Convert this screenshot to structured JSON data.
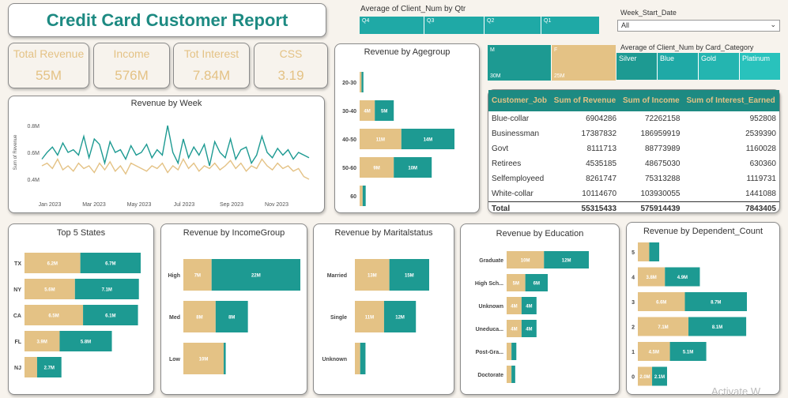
{
  "title": "Credit Card Customer Report",
  "kpis": [
    {
      "label": "Total Revenue",
      "value": "55M"
    },
    {
      "label": "Income",
      "value": "576M"
    },
    {
      "label": "Tot Interest",
      "value": "7.84M"
    },
    {
      "label": "CSS",
      "value": "3.19"
    }
  ],
  "qtr_chart": {
    "title": "Average of Client_Num by Qtr",
    "segments": [
      "Q4",
      "Q3",
      "Q2",
      "Q1"
    ]
  },
  "slicer": {
    "label": "Week_Start_Date",
    "value": "All"
  },
  "gender_tree": {
    "items": [
      {
        "label": "M",
        "value": "30M"
      },
      {
        "label": "F",
        "value": "25M"
      }
    ]
  },
  "card_category": {
    "title": "Average of Client_Num by Card_Category",
    "items": [
      "Silver",
      "Blue",
      "Gold",
      "Platinum"
    ]
  },
  "table": {
    "headers": [
      "Customer_Job",
      "Sum of Revenue",
      "Sum of Income",
      "Sum of Interest_Earned"
    ],
    "rows": [
      [
        "Blue-collar",
        "6904286",
        "72262158",
        "952808"
      ],
      [
        "Businessman",
        "17387832",
        "186959919",
        "2539390"
      ],
      [
        "Govt",
        "8111713",
        "88773989",
        "1160028"
      ],
      [
        "Retirees",
        "4535185",
        "48675030",
        "630360"
      ],
      [
        "Selfemployeed",
        "8261747",
        "75313288",
        "1119731"
      ],
      [
        "White-collar",
        "10114670",
        "103930055",
        "1441088"
      ]
    ],
    "total": [
      "Total",
      "55315433",
      "575914439",
      "7843405"
    ]
  },
  "colors": {
    "teal": "#1d9a92",
    "gold": "#e4c285",
    "qtr": "#1fa9a6"
  },
  "chart_data": [
    {
      "type": "line",
      "title": "Revenue by Week",
      "ylabel": "Sum of Revenue",
      "yticks": [
        "0.8M",
        "0.6M",
        "0.4M"
      ],
      "ylim": [
        0.3,
        0.9
      ],
      "xticks": [
        "Jan 2023",
        "Mar 2023",
        "May 2023",
        "Jul 2023",
        "Sep 2023",
        "Nov 2023"
      ],
      "series": [
        {
          "name": "",
          "values": [
            0.55,
            0.6,
            0.64,
            0.58,
            0.67,
            0.6,
            0.62,
            0.58,
            0.72,
            0.56,
            0.7,
            0.66,
            0.52,
            0.68,
            0.6,
            0.62,
            0.55,
            0.65,
            0.58,
            0.6,
            0.66,
            0.56,
            0.62,
            0.58,
            0.8,
            0.6,
            0.52,
            0.7,
            0.56,
            0.64,
            0.58,
            0.66,
            0.5,
            0.68,
            0.6,
            0.56,
            0.7,
            0.55,
            0.62,
            0.64,
            0.52,
            0.58,
            0.72,
            0.6,
            0.56,
            0.63,
            0.58,
            0.62,
            0.55,
            0.6,
            0.58,
            0.56
          ]
        },
        {
          "name": "",
          "values": [
            0.5,
            0.52,
            0.48,
            0.55,
            0.47,
            0.5,
            0.46,
            0.52,
            0.48,
            0.5,
            0.45,
            0.52,
            0.47,
            0.53,
            0.46,
            0.5,
            0.44,
            0.52,
            0.5,
            0.48,
            0.46,
            0.5,
            0.48,
            0.52,
            0.45,
            0.5,
            0.47,
            0.55,
            0.48,
            0.52,
            0.46,
            0.5,
            0.48,
            0.52,
            0.47,
            0.5,
            0.54,
            0.48,
            0.52,
            0.46,
            0.5,
            0.48,
            0.55,
            0.5,
            0.47,
            0.52,
            0.48,
            0.5,
            0.46,
            0.48,
            0.42,
            0.4
          ]
        }
      ]
    },
    {
      "type": "bar",
      "title": "Revenue by Agegroup",
      "categories": [
        "20-30",
        "30-40",
        "40-50",
        "50-60",
        "60"
      ],
      "series": [
        {
          "name": "",
          "values": [
            0.5,
            4,
            11,
            9,
            0.8
          ],
          "labels": [
            "",
            "4M",
            "11M",
            "9M",
            ""
          ]
        },
        {
          "name": "",
          "values": [
            0.5,
            5,
            14,
            10,
            0.8
          ],
          "labels": [
            "",
            "5M",
            "14M",
            "10M",
            ""
          ]
        }
      ]
    },
    {
      "type": "bar",
      "title": "Top 5 States",
      "categories": [
        "TX",
        "NY",
        "CA",
        "FL",
        "NJ"
      ],
      "series": [
        {
          "name": "",
          "values": [
            6.2,
            5.6,
            6.5,
            3.9,
            1.4
          ],
          "labels": [
            "6.2M",
            "5.6M",
            "6.5M",
            "3.9M",
            ""
          ]
        },
        {
          "name": "",
          "values": [
            6.7,
            7.1,
            6.1,
            5.8,
            2.7
          ],
          "labels": [
            "6.7M",
            "7.1M",
            "6.1M",
            "5.8M",
            "2.7M"
          ]
        }
      ]
    },
    {
      "type": "bar",
      "title": "Revenue by IncomeGroup",
      "categories": [
        "High",
        "Med",
        "Low"
      ],
      "series": [
        {
          "name": "",
          "values": [
            7,
            8,
            10
          ],
          "labels": [
            "7M",
            "8M",
            "10M"
          ]
        },
        {
          "name": "",
          "values": [
            22,
            8,
            0.5
          ],
          "labels": [
            "22M",
            "8M",
            ""
          ]
        }
      ]
    },
    {
      "type": "bar",
      "title": "Revenue by Maritalstatus",
      "categories": [
        "Married",
        "Single",
        "Unknown"
      ],
      "series": [
        {
          "name": "",
          "values": [
            13,
            11,
            2
          ],
          "labels": [
            "13M",
            "11M",
            ""
          ]
        },
        {
          "name": "",
          "values": [
            15,
            12,
            2
          ],
          "labels": [
            "15M",
            "12M",
            ""
          ]
        }
      ]
    },
    {
      "type": "bar",
      "title": "Revenue by Education",
      "categories": [
        "Graduate",
        "High Sch...",
        "Unknown",
        "Uneduca...",
        "Post-Gra...",
        "Doctorate"
      ],
      "series": [
        {
          "name": "",
          "values": [
            10,
            5,
            4,
            4,
            1.3,
            1.3
          ],
          "labels": [
            "10M",
            "5M",
            "4M",
            "4M",
            "",
            ""
          ]
        },
        {
          "name": "",
          "values": [
            12,
            6,
            4,
            4,
            1.3,
            1
          ],
          "labels": [
            "12M",
            "6M",
            "4M",
            "4M",
            "",
            ""
          ]
        }
      ]
    },
    {
      "type": "bar",
      "title": "Revenue by Dependent_Count",
      "categories": [
        "5",
        "4",
        "3",
        "2",
        "1",
        "0"
      ],
      "series": [
        {
          "name": "",
          "values": [
            1.6,
            3.8,
            6.6,
            7.1,
            4.5,
            2.0
          ],
          "labels": [
            "",
            "3.8M",
            "6.6M",
            "7.1M",
            "4.5M",
            "2.0M"
          ]
        },
        {
          "name": "",
          "values": [
            1.4,
            4.9,
            8.7,
            8.1,
            5.1,
            2.1
          ],
          "labels": [
            "",
            "4.9M",
            "8.7M",
            "8.1M",
            "5.1M",
            "2.1M"
          ]
        }
      ]
    }
  ],
  "watermark": "Activate W"
}
